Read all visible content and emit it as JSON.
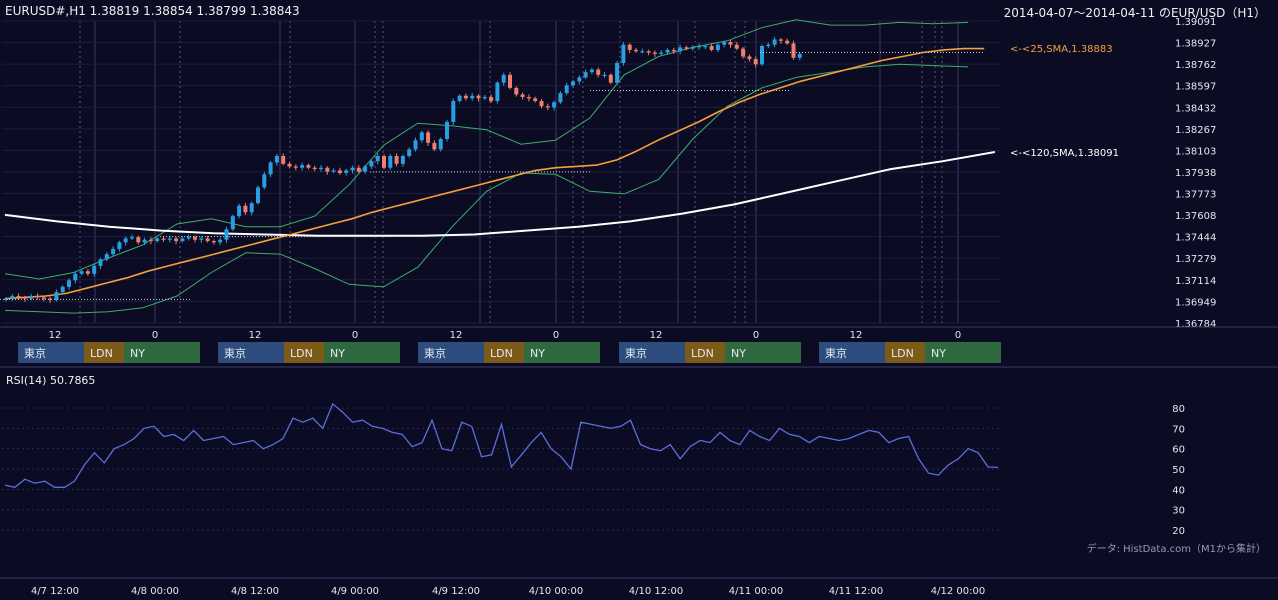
{
  "header": {
    "symbol_ohlc": "EURUSD#,H1 1.38819 1.38854 1.38799 1.38843",
    "range_title": "2014-04-07～2014-04-11 のEUR/USD（H1）"
  },
  "sessions": [
    "東京",
    "LDN",
    "NY"
  ],
  "rsi_title": "RSI(14) 50.7865",
  "credit": "データ: HistData.com（M1から集計）",
  "colors": {
    "background": "#0b0b24",
    "up": "#2a9fe0",
    "down": "#f07e6e",
    "sma25": "#f5a03a",
    "sma120": "#ffffff",
    "bollinger": "#3fae6a",
    "rsi": "#5b6fd8",
    "tokyo": "#2c4d7e",
    "london": "#7c5a18",
    "newyork": "#2f6a3f"
  },
  "chart_data": [
    {
      "type": "candlestick",
      "title": "",
      "ylim": [
        1.36784,
        1.39091
      ],
      "y_ticks": [
        "1.39091",
        "1.38927",
        "1.38762",
        "1.38597",
        "1.38432",
        "1.38267",
        "1.38103",
        "1.37938",
        "1.37773",
        "1.37608",
        "1.37444",
        "1.37279",
        "1.37114",
        "1.36949",
        "1.36784"
      ],
      "x_ticks": [
        "12",
        "0",
        "12",
        "0",
        "12",
        "0",
        "12",
        "0",
        "12",
        "0"
      ],
      "grid": true,
      "closes": [
        1.3697,
        1.3699,
        1.3698,
        1.3697,
        1.3699,
        1.3698,
        1.3697,
        1.3696,
        1.3702,
        1.3706,
        1.3711,
        1.3716,
        1.3718,
        1.3716,
        1.3722,
        1.3727,
        1.3731,
        1.3735,
        1.374,
        1.3743,
        1.3744,
        1.374,
        1.3742,
        1.3741,
        1.3743,
        1.3742,
        1.3743,
        1.3741,
        1.3743,
        1.3744,
        1.3742,
        1.3743,
        1.3741,
        1.374,
        1.3742,
        1.375,
        1.376,
        1.3768,
        1.3763,
        1.377,
        1.3782,
        1.3792,
        1.3801,
        1.3806,
        1.38,
        1.3798,
        1.3797,
        1.3799,
        1.3797,
        1.3796,
        1.3797,
        1.3794,
        1.3795,
        1.3793,
        1.3795,
        1.3797,
        1.3794,
        1.3798,
        1.3802,
        1.3806,
        1.3797,
        1.3806,
        1.38,
        1.3806,
        1.3811,
        1.3818,
        1.3824,
        1.3816,
        1.3811,
        1.3819,
        1.3832,
        1.3848,
        1.3852,
        1.385,
        1.3852,
        1.385,
        1.3851,
        1.3848,
        1.3862,
        1.3868,
        1.3858,
        1.3853,
        1.3851,
        1.385,
        1.3848,
        1.3844,
        1.3843,
        1.3847,
        1.3854,
        1.386,
        1.3863,
        1.3866,
        1.387,
        1.3872,
        1.3868,
        1.3868,
        1.3862,
        1.3877,
        1.3891,
        1.3887,
        1.3886,
        1.3886,
        1.3885,
        1.3884,
        1.3885,
        1.3887,
        1.3886,
        1.3889,
        1.3888,
        1.3889,
        1.389,
        1.389,
        1.3887,
        1.3891,
        1.3893,
        1.3891,
        1.3888,
        1.3882,
        1.388,
        1.3876,
        1.389,
        1.3891,
        1.3895,
        1.3894,
        1.3892,
        1.3881,
        1.3884
      ],
      "series": [
        {
          "name": "25,SMA",
          "value": 1.38883,
          "values": [
            1.3697,
            1.3698,
            1.3699,
            1.3701,
            1.3705,
            1.3709,
            1.3713,
            1.3718,
            1.3722,
            1.3726,
            1.373,
            1.3734,
            1.3738,
            1.3742,
            1.3746,
            1.375,
            1.3754,
            1.3758,
            1.3763,
            1.3767,
            1.3771,
            1.3775,
            1.3779,
            1.3783,
            1.3787,
            1.3791,
            1.3795,
            1.3797,
            1.3798,
            1.3799,
            1.3803,
            1.381,
            1.3818,
            1.3825,
            1.3832,
            1.384,
            1.3847,
            1.3853,
            1.3858,
            1.3863,
            1.3867,
            1.3871,
            1.3875,
            1.3879,
            1.3882,
            1.3885,
            1.3887,
            1.3888,
            1.3888
          ]
        },
        {
          "name": "120,SMA",
          "value": 1.38091,
          "values": [
            1.3761,
            1.3756,
            1.3752,
            1.3749,
            1.3747,
            1.3746,
            1.3745,
            1.3745,
            1.3745,
            1.3746,
            1.3749,
            1.3752,
            1.3756,
            1.3762,
            1.3769,
            1.3778,
            1.3787,
            1.3796,
            1.3802,
            1.3809
          ]
        },
        {
          "name": "BB upper",
          "values": [
            1.3716,
            1.3712,
            1.3717,
            1.3728,
            1.3738,
            1.3754,
            1.3758,
            1.3752,
            1.3752,
            1.376,
            1.3784,
            1.3814,
            1.3831,
            1.3829,
            1.3826,
            1.3815,
            1.3818,
            1.3835,
            1.3868,
            1.3882,
            1.3889,
            1.3894,
            1.3904,
            1.391,
            1.3906,
            1.3906,
            1.3908,
            1.3907,
            1.3908
          ]
        },
        {
          "name": "BB lower",
          "values": [
            1.3688,
            1.3687,
            1.3686,
            1.3687,
            1.369,
            1.3699,
            1.3717,
            1.3732,
            1.3731,
            1.372,
            1.3708,
            1.3706,
            1.3721,
            1.3752,
            1.3779,
            1.3793,
            1.3792,
            1.3779,
            1.3777,
            1.3788,
            1.3819,
            1.3844,
            1.3858,
            1.3866,
            1.387,
            1.3874,
            1.3876,
            1.3875,
            1.3874
          ]
        }
      ]
    },
    {
      "type": "line",
      "title": "RSI(14) 50.7865",
      "ylim": [
        20,
        80
      ],
      "y_ticks": [
        "80",
        "70",
        "60",
        "50",
        "40",
        "30",
        "20"
      ],
      "x_ticks": [
        "4/7 12:00",
        "4/8 00:00",
        "4/8 12:00",
        "4/9 00:00",
        "4/9 12:00",
        "4/10 00:00",
        "4/10 12:00",
        "4/11 00:00",
        "4/11 12:00",
        "4/12 00:00"
      ],
      "series": [
        {
          "name": "RSI(14)",
          "values": [
            42,
            41,
            45,
            43,
            44,
            41,
            41,
            44,
            52,
            58,
            53,
            60,
            62,
            65,
            70,
            71,
            66,
            67,
            64,
            69,
            64,
            65,
            66,
            62,
            63,
            64,
            60,
            62,
            65,
            75,
            73,
            75,
            70,
            82,
            78,
            73,
            74,
            71,
            70,
            68,
            67,
            61,
            63,
            74,
            60,
            59,
            73,
            71,
            56,
            57,
            72,
            51,
            57,
            63,
            68,
            60,
            56,
            50,
            73,
            72,
            71,
            70,
            71,
            74,
            62,
            60,
            59,
            62,
            55,
            61,
            64,
            63,
            68,
            64,
            62,
            69,
            66,
            64,
            70,
            67,
            66,
            63,
            66,
            65,
            64,
            65,
            67,
            69,
            68,
            63,
            65,
            66,
            55,
            48,
            47,
            52,
            55,
            60,
            58,
            51,
            50.7865
          ]
        }
      ]
    }
  ]
}
